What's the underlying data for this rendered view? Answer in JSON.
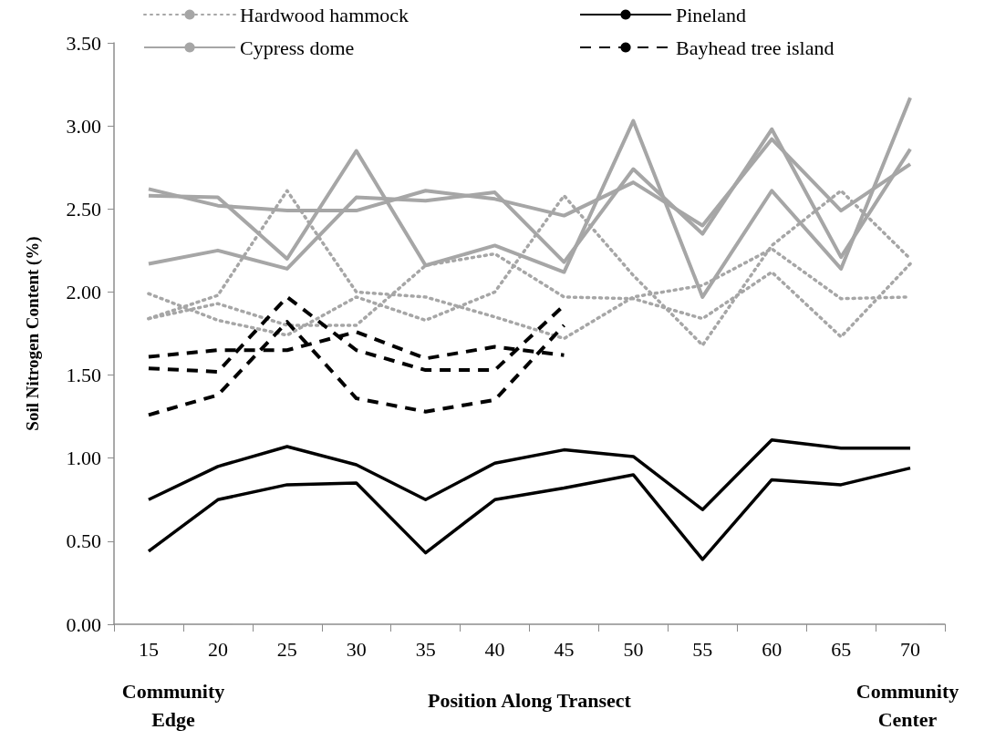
{
  "chart_data": {
    "type": "line",
    "ylabel": "Soil Nitrogen Content (%)",
    "xlabel": "Position Along Transect",
    "annotations": [
      "Community Edge",
      "Community Center"
    ],
    "categories": [
      "15",
      "20",
      "25",
      "30",
      "35",
      "40",
      "45",
      "50",
      "55",
      "60",
      "65",
      "70"
    ],
    "ylim": [
      0,
      3.5
    ],
    "yticks": [
      {
        "value": 0,
        "label": "0.00"
      },
      {
        "value": 0.5,
        "label": "0.50"
      },
      {
        "value": 1,
        "label": "1.00"
      },
      {
        "value": 1.5,
        "label": "1.50"
      },
      {
        "value": 2,
        "label": "2.00"
      },
      {
        "value": 2.5,
        "label": "2.50"
      },
      {
        "value": 3,
        "label": "3.00"
      },
      {
        "value": 3.5,
        "label": "3.50"
      }
    ],
    "grid": false,
    "legend": "top",
    "marker": "none",
    "series": [
      {
        "name": "Hardwood hammock",
        "color": "#a6a6a6",
        "line_style": "dotted",
        "values": [
          1.99,
          1.83,
          1.74,
          1.97,
          1.83,
          2.0,
          2.58,
          2.1,
          1.68,
          2.28,
          2.61,
          2.2
        ]
      },
      {
        "name": "Pineland",
        "color": "#000000",
        "line_style": "solid",
        "values": [
          0.75,
          0.95,
          1.07,
          0.96,
          0.75,
          0.97,
          1.05,
          1.01,
          0.69,
          1.11,
          1.06,
          1.06
        ]
      },
      {
        "name": "Cypress dome",
        "color": "#a6a6a6",
        "line_style": "solid",
        "values": [
          2.62,
          2.52,
          2.49,
          2.49,
          2.61,
          2.56,
          2.46,
          2.66,
          2.4,
          2.92,
          2.49,
          2.77
        ]
      },
      {
        "name": "Bayhead tree island",
        "color": "#000000",
        "line_style": "dashed",
        "values": [
          1.61,
          1.65,
          1.65,
          1.76,
          1.6,
          1.67,
          1.62,
          null,
          null,
          null,
          null,
          null
        ]
      },
      {
        "color": "#a6a6a6",
        "line_style": "dotted",
        "values": [
          1.84,
          1.98,
          2.61,
          2.0,
          1.97,
          1.85,
          1.72,
          1.97,
          2.04,
          2.26,
          1.96,
          1.97
        ]
      },
      {
        "color": "#a6a6a6",
        "line_style": "dotted",
        "values": [
          1.84,
          1.93,
          1.8,
          1.8,
          2.16,
          2.23,
          1.97,
          1.96,
          1.84,
          2.12,
          1.73,
          2.17
        ]
      },
      {
        "color": "#000000",
        "line_style": "solid",
        "values": [
          0.44,
          0.75,
          0.84,
          0.85,
          0.43,
          0.75,
          0.82,
          0.9,
          0.39,
          0.87,
          0.84,
          0.94
        ]
      },
      {
        "color": "#a6a6a6",
        "line_style": "solid",
        "values": [
          2.58,
          2.57,
          2.2,
          2.85,
          2.16,
          2.28,
          2.12,
          3.03,
          1.97,
          2.61,
          2.14,
          3.17
        ]
      },
      {
        "color": "#a6a6a6",
        "line_style": "solid",
        "values": [
          2.17,
          2.25,
          2.14,
          2.57,
          2.55,
          2.6,
          2.18,
          2.74,
          2.35,
          2.98,
          2.21,
          2.86
        ]
      },
      {
        "color": "#000000",
        "line_style": "dashed",
        "values": [
          1.54,
          1.52,
          1.97,
          1.65,
          1.53,
          1.53,
          1.92,
          null,
          null,
          null,
          null,
          null
        ]
      },
      {
        "color": "#000000",
        "line_style": "dashed",
        "values": [
          1.26,
          1.38,
          1.82,
          1.36,
          1.28,
          1.35,
          1.8,
          null,
          null,
          null,
          null,
          null
        ]
      }
    ]
  }
}
